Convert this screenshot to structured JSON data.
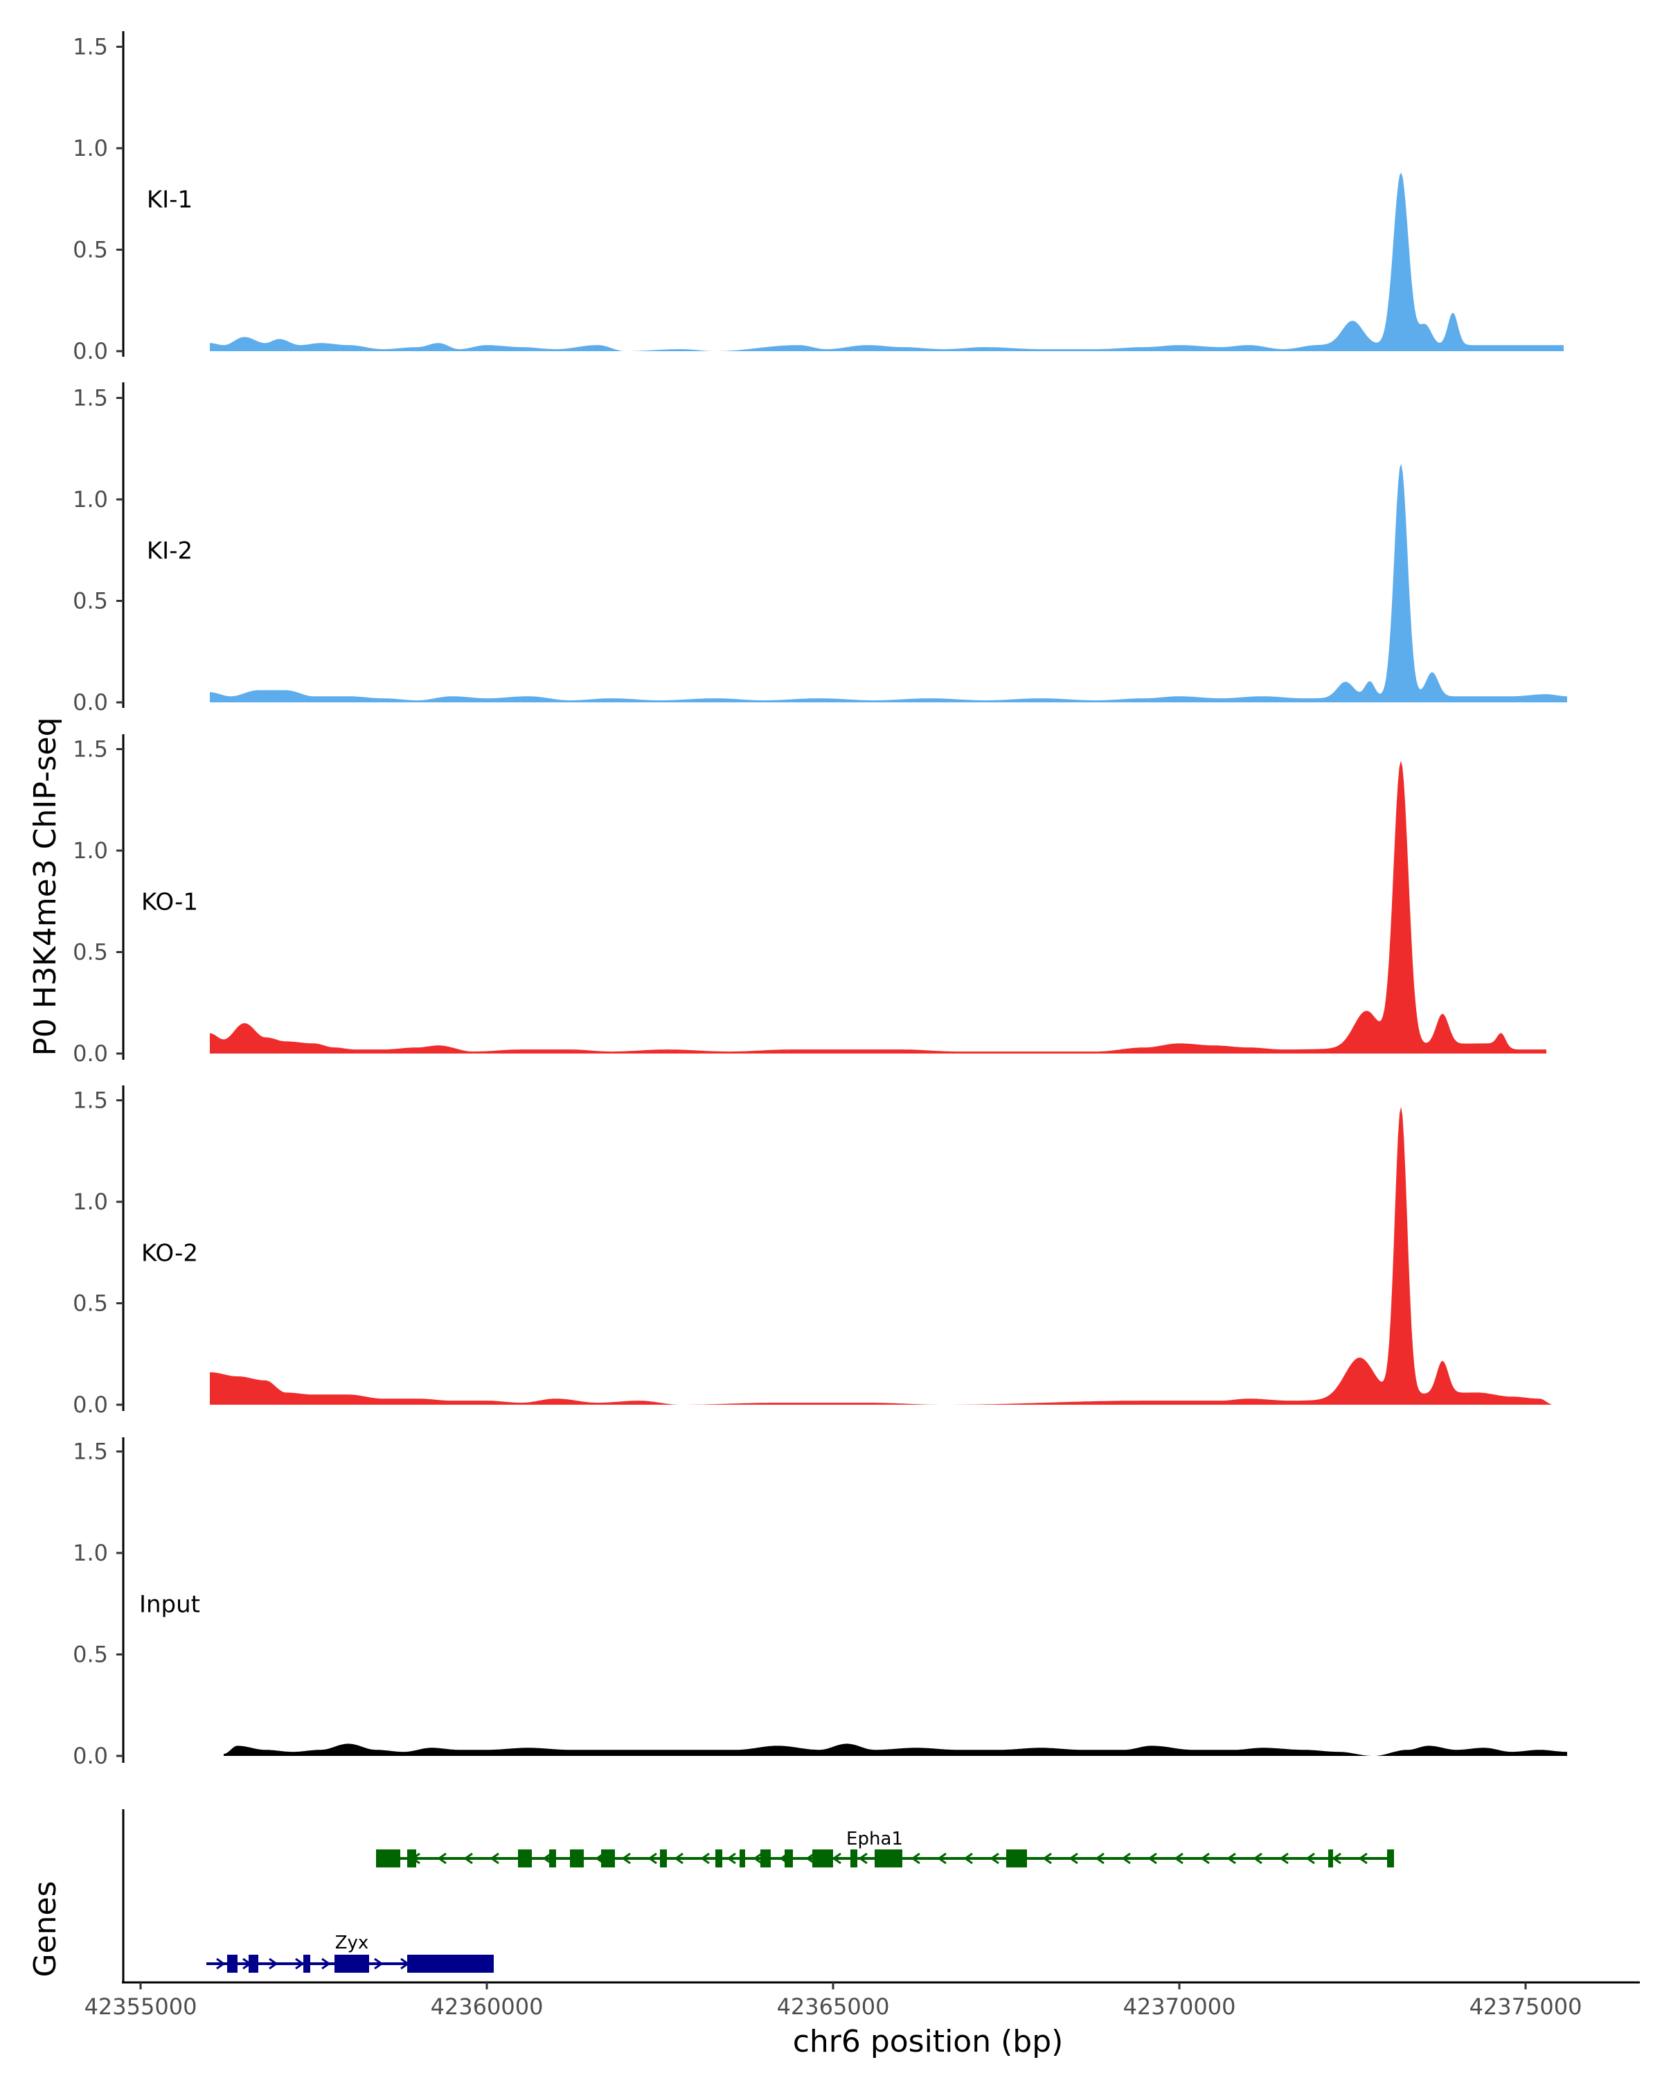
{
  "chart_data": {
    "type": "area",
    "ylabel": "P0 H3K4me3 ChIP-seq",
    "xlabel": "chr6 position (bp)",
    "genes_label": "Genes",
    "ylim": [
      0,
      1.6
    ],
    "yticks": [
      0.0,
      0.5,
      1.0,
      1.5
    ],
    "ytick_labels": [
      "0.0",
      "0.5",
      "1.0",
      "1.5"
    ],
    "xlim": [
      42354750,
      42376650
    ],
    "xticks": [
      42355000,
      42360000,
      42365000,
      42370000,
      42375000
    ],
    "xtick_labels": [
      "42355000",
      "42360000",
      "42365000",
      "42370000",
      "42375000"
    ],
    "tracks": [
      {
        "name": "KI-1",
        "color": "#5DADEC",
        "x_start": 42356000,
        "x_end": 42375550,
        "baseline": [
          [
            42356000,
            0.04
          ],
          [
            42356200,
            0.03
          ],
          [
            42356500,
            0.07
          ],
          [
            42356800,
            0.04
          ],
          [
            42357000,
            0.06
          ],
          [
            42357300,
            0.03
          ],
          [
            42357600,
            0.04
          ],
          [
            42358000,
            0.03
          ],
          [
            42358500,
            0.01
          ],
          [
            42359000,
            0.02
          ],
          [
            42359300,
            0.04
          ],
          [
            42359600,
            0.01
          ],
          [
            42360000,
            0.03
          ],
          [
            42360500,
            0.02
          ],
          [
            42361000,
            0.01
          ],
          [
            42361600,
            0.03
          ],
          [
            42362000,
            0.0
          ],
          [
            42362800,
            0.01
          ],
          [
            42363300,
            0.0
          ],
          [
            42364500,
            0.03
          ],
          [
            42364900,
            0.01
          ],
          [
            42365500,
            0.03
          ],
          [
            42366000,
            0.02
          ],
          [
            42366600,
            0.01
          ],
          [
            42367200,
            0.02
          ],
          [
            42368000,
            0.01
          ],
          [
            42368800,
            0.01
          ],
          [
            42369500,
            0.02
          ],
          [
            42370000,
            0.03
          ],
          [
            42370600,
            0.02
          ],
          [
            42371000,
            0.03
          ],
          [
            42371500,
            0.01
          ],
          [
            42372000,
            0.03
          ]
        ],
        "peaks": [
          [
            42373200,
            0.85,
            0.18
          ],
          [
            42372500,
            0.12,
            0.25
          ],
          [
            42373950,
            0.16,
            0.12
          ],
          [
            42373550,
            0.1,
            0.15
          ]
        ]
      },
      {
        "name": "KI-2",
        "color": "#5DADEC",
        "x_start": 42356000,
        "x_end": 42375600,
        "baseline": [
          [
            42356000,
            0.05
          ],
          [
            42356300,
            0.03
          ],
          [
            42356700,
            0.06
          ],
          [
            42357100,
            0.06
          ],
          [
            42357500,
            0.03
          ],
          [
            42358000,
            0.03
          ],
          [
            42358500,
            0.02
          ],
          [
            42359000,
            0.01
          ],
          [
            42359500,
            0.03
          ],
          [
            42360000,
            0.02
          ],
          [
            42360600,
            0.03
          ],
          [
            42361200,
            0.01
          ],
          [
            42361800,
            0.02
          ],
          [
            42362500,
            0.01
          ],
          [
            42363300,
            0.02
          ],
          [
            42364000,
            0.01
          ],
          [
            42364800,
            0.02
          ],
          [
            42365600,
            0.01
          ],
          [
            42366400,
            0.02
          ],
          [
            42367200,
            0.01
          ],
          [
            42368000,
            0.02
          ],
          [
            42368800,
            0.01
          ],
          [
            42369500,
            0.02
          ],
          [
            42370000,
            0.03
          ],
          [
            42370600,
            0.02
          ],
          [
            42371200,
            0.03
          ],
          [
            42371800,
            0.02
          ],
          [
            42374200,
            0.03
          ],
          [
            42374800,
            0.03
          ],
          [
            42375300,
            0.04
          ],
          [
            42375600,
            0.03
          ]
        ],
        "peaks": [
          [
            42373200,
            1.15,
            0.16
          ],
          [
            42372400,
            0.08,
            0.2
          ],
          [
            42372750,
            0.08,
            0.12
          ],
          [
            42373650,
            0.12,
            0.15
          ]
        ]
      },
      {
        "name": "KO-1",
        "color": "#EE2C2C",
        "x_start": 42356000,
        "x_end": 42375300,
        "baseline": [
          [
            42356000,
            0.1
          ],
          [
            42356200,
            0.07
          ],
          [
            42356500,
            0.15
          ],
          [
            42356800,
            0.08
          ],
          [
            42357100,
            0.06
          ],
          [
            42357500,
            0.05
          ],
          [
            42357800,
            0.03
          ],
          [
            42358100,
            0.02
          ],
          [
            42358500,
            0.02
          ],
          [
            42359000,
            0.03
          ],
          [
            42359300,
            0.04
          ],
          [
            42359800,
            0.01
          ],
          [
            42360500,
            0.02
          ],
          [
            42361200,
            0.02
          ],
          [
            42361800,
            0.01
          ],
          [
            42362600,
            0.02
          ],
          [
            42363500,
            0.01
          ],
          [
            42364400,
            0.02
          ],
          [
            42365200,
            0.02
          ],
          [
            42366000,
            0.02
          ],
          [
            42366800,
            0.01
          ],
          [
            42367800,
            0.01
          ],
          [
            42368800,
            0.01
          ],
          [
            42369500,
            0.03
          ],
          [
            42370000,
            0.05
          ],
          [
            42370500,
            0.04
          ],
          [
            42371000,
            0.03
          ],
          [
            42371500,
            0.02
          ],
          [
            42374500,
            0.05
          ],
          [
            42374900,
            0.02
          ],
          [
            42375300,
            0.02
          ]
        ],
        "peaks": [
          [
            42373200,
            1.4,
            0.18
          ],
          [
            42372700,
            0.18,
            0.3
          ],
          [
            42373800,
            0.15,
            0.15
          ],
          [
            42374650,
            0.06,
            0.1
          ]
        ]
      },
      {
        "name": "KO-2",
        "color": "#EE2C2C",
        "x_start": 42356000,
        "x_end": 42375400,
        "baseline": [
          [
            42356000,
            0.16
          ],
          [
            42356400,
            0.14
          ],
          [
            42356800,
            0.12
          ],
          [
            42357100,
            0.06
          ],
          [
            42357500,
            0.05
          ],
          [
            42358000,
            0.05
          ],
          [
            42358500,
            0.03
          ],
          [
            42359000,
            0.03
          ],
          [
            42359500,
            0.02
          ],
          [
            42360000,
            0.02
          ],
          [
            42360500,
            0.01
          ],
          [
            42361000,
            0.03
          ],
          [
            42361600,
            0.01
          ],
          [
            42362200,
            0.02
          ],
          [
            42362800,
            0.0
          ],
          [
            42364200,
            0.01
          ],
          [
            42364800,
            0.01
          ],
          [
            42365500,
            0.01
          ],
          [
            42366600,
            0.0
          ],
          [
            42369500,
            0.02
          ],
          [
            42370000,
            0.02
          ],
          [
            42370600,
            0.02
          ],
          [
            42371000,
            0.03
          ],
          [
            42371600,
            0.02
          ],
          [
            42374300,
            0.06
          ],
          [
            42374800,
            0.04
          ],
          [
            42375200,
            0.03
          ],
          [
            42375400,
            0.0
          ]
        ],
        "peaks": [
          [
            42373200,
            1.42,
            0.15
          ],
          [
            42372600,
            0.2,
            0.35
          ],
          [
            42373800,
            0.16,
            0.14
          ]
        ]
      },
      {
        "name": "Input",
        "color": "#000000",
        "x_start": 42356200,
        "x_end": 42375600,
        "baseline": [
          [
            42356200,
            0.01
          ],
          [
            42356400,
            0.05
          ],
          [
            42356800,
            0.03
          ],
          [
            42357200,
            0.02
          ],
          [
            42357600,
            0.03
          ],
          [
            42358000,
            0.06
          ],
          [
            42358400,
            0.03
          ],
          [
            42358800,
            0.02
          ],
          [
            42359200,
            0.04
          ],
          [
            42359600,
            0.03
          ],
          [
            42360000,
            0.03
          ],
          [
            42360600,
            0.04
          ],
          [
            42361200,
            0.03
          ],
          [
            42361800,
            0.03
          ],
          [
            42362400,
            0.03
          ],
          [
            42363000,
            0.03
          ],
          [
            42363600,
            0.03
          ],
          [
            42364200,
            0.05
          ],
          [
            42364800,
            0.03
          ],
          [
            42365200,
            0.06
          ],
          [
            42365600,
            0.03
          ],
          [
            42366200,
            0.04
          ],
          [
            42366800,
            0.03
          ],
          [
            42367400,
            0.03
          ],
          [
            42368000,
            0.04
          ],
          [
            42368600,
            0.03
          ],
          [
            42369200,
            0.03
          ],
          [
            42369600,
            0.05
          ],
          [
            42370200,
            0.03
          ],
          [
            42370800,
            0.03
          ],
          [
            42371200,
            0.04
          ],
          [
            42371800,
            0.03
          ],
          [
            42372300,
            0.02
          ],
          [
            42372800,
            0.0
          ],
          [
            42373300,
            0.03
          ],
          [
            42373600,
            0.05
          ],
          [
            42374000,
            0.03
          ],
          [
            42374400,
            0.04
          ],
          [
            42374800,
            0.02
          ],
          [
            42375200,
            0.03
          ],
          [
            42375600,
            0.02
          ]
        ],
        "peaks": []
      }
    ],
    "genes": [
      {
        "name": "Epha1",
        "color": "#006400",
        "strand": "-",
        "start": 42358400,
        "end": 42373100,
        "exons": [
          [
            42358400,
            42358750
          ],
          [
            42358850,
            42358980
          ],
          [
            42360450,
            42360650
          ],
          [
            42360900,
            42361000
          ],
          [
            42361200,
            42361400
          ],
          [
            42361650,
            42361850
          ],
          [
            42362500,
            42362600
          ],
          [
            42363300,
            42363400
          ],
          [
            42363650,
            42363730
          ],
          [
            42363950,
            42364100
          ],
          [
            42364300,
            42364420
          ],
          [
            42364700,
            42365000
          ],
          [
            42365250,
            42365350
          ],
          [
            42365600,
            42366000
          ],
          [
            42367500,
            42367800
          ],
          [
            42372150,
            42372220
          ],
          [
            42373000,
            42373100
          ]
        ]
      },
      {
        "name": "Zyx",
        "color": "#00008B",
        "strand": "+",
        "start": 42355950,
        "end": 42360100,
        "exons": [
          [
            42356250,
            42356400
          ],
          [
            42356560,
            42356700
          ],
          [
            42357350,
            42357450
          ],
          [
            42357800,
            42358300
          ],
          [
            42358850,
            42360100
          ]
        ]
      }
    ]
  }
}
